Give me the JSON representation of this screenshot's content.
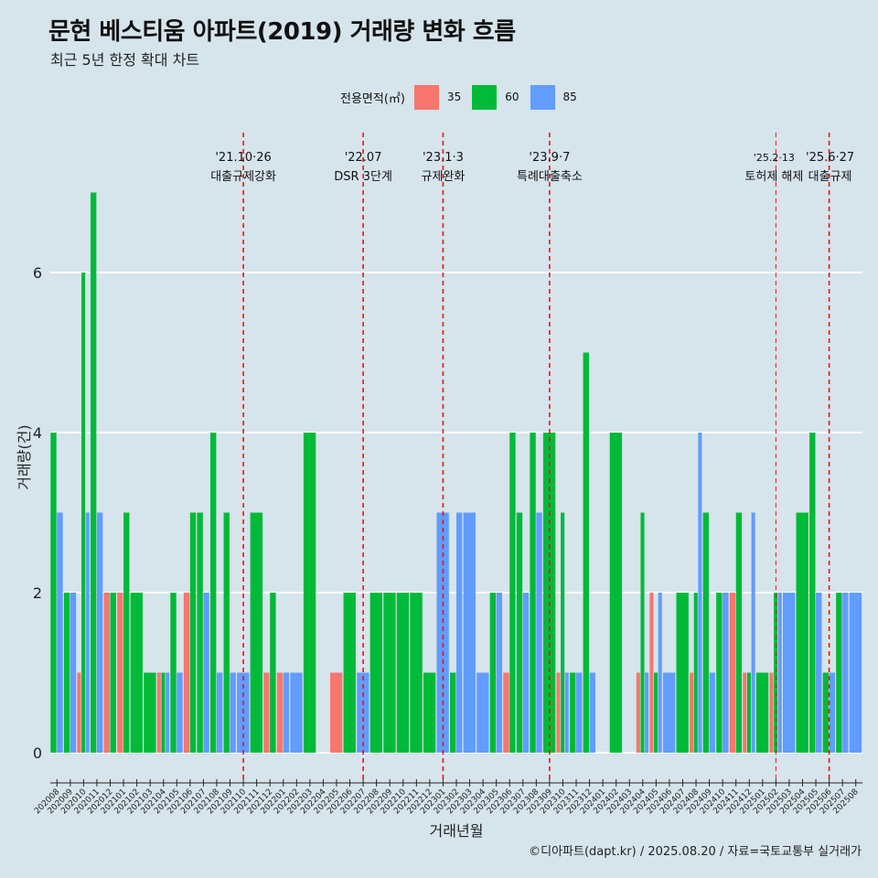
{
  "title": "문현 베스티움 아파트(2019) 거래량 변화 흐름",
  "subtitle": "최근 5년 한정 확대 차트",
  "caption": "©디아파트(dapt.kr) / 2025.08.20 / 자료=국토교통부 실거래가",
  "legend": {
    "title": "전용면적(㎡)",
    "items": [
      {
        "label": "35",
        "color": "#f8766d"
      },
      {
        "label": "60",
        "color": "#00ba38"
      },
      {
        "label": "85",
        "color": "#619cff"
      }
    ]
  },
  "chart_data": {
    "type": "bar",
    "xlabel": "거래년월",
    "ylabel": "거래량(건)",
    "ylim": [
      0,
      7
    ],
    "yticks": [
      0,
      2,
      4,
      6
    ],
    "grid": "horizontal",
    "legend_position": "top",
    "categories": [
      "202008",
      "202009",
      "202010",
      "202011",
      "202012",
      "202101",
      "202102",
      "202103",
      "202104",
      "202105",
      "202106",
      "202107",
      "202108",
      "202109",
      "202110",
      "202111",
      "202112",
      "202201",
      "202202",
      "202203",
      "202204",
      "202205",
      "202206",
      "202207",
      "202208",
      "202209",
      "202210",
      "202211",
      "202212",
      "202301",
      "202302",
      "202303",
      "202304",
      "202305",
      "202306",
      "202307",
      "202308",
      "202309",
      "202310",
      "202311",
      "202312",
      "202401",
      "202402",
      "202403",
      "202404",
      "202405",
      "202406",
      "202407",
      "202408",
      "202409",
      "202410",
      "202411",
      "202412",
      "202501",
      "202502",
      "202503",
      "202504",
      "202505",
      "202506",
      "202507",
      "202508"
    ],
    "series": [
      {
        "name": "35",
        "values": [
          0,
          0,
          1,
          0,
          2,
          2,
          0,
          0,
          1,
          0,
          2,
          0,
          0,
          0,
          0,
          0,
          1,
          1,
          0,
          0,
          0,
          1,
          0,
          0,
          0,
          0,
          0,
          0,
          0,
          0,
          0,
          0,
          0,
          0,
          1,
          0,
          0,
          0,
          1,
          0,
          0,
          0,
          0,
          0,
          1,
          2,
          0,
          0,
          1,
          0,
          0,
          2,
          1,
          0,
          1,
          0,
          0,
          0,
          0,
          0,
          0
        ]
      },
      {
        "name": "60",
        "values": [
          4,
          2,
          6,
          7,
          2,
          3,
          2,
          1,
          1,
          2,
          3,
          3,
          4,
          3,
          0,
          3,
          2,
          0,
          0,
          4,
          0,
          0,
          2,
          0,
          2,
          2,
          2,
          2,
          1,
          0,
          1,
          0,
          0,
          2,
          4,
          3,
          4,
          4,
          3,
          1,
          5,
          0,
          4,
          0,
          3,
          1,
          0,
          2,
          2,
          3,
          2,
          3,
          1,
          1,
          2,
          0,
          3,
          4,
          1,
          2,
          0
        ]
      },
      {
        "name": "85",
        "values": [
          3,
          2,
          3,
          3,
          0,
          0,
          0,
          0,
          1,
          1,
          0,
          2,
          1,
          1,
          1,
          0,
          0,
          1,
          1,
          0,
          0,
          0,
          0,
          1,
          0,
          0,
          0,
          0,
          0,
          3,
          3,
          3,
          1,
          2,
          0,
          2,
          3,
          0,
          1,
          1,
          1,
          0,
          0,
          0,
          1,
          2,
          1,
          0,
          4,
          1,
          2,
          0,
          3,
          0,
          2,
          2,
          0,
          2,
          1,
          2,
          2
        ]
      }
    ],
    "annotations": [
      {
        "date": "'21.10·26",
        "label": "대출규제강화",
        "at": "202110"
      },
      {
        "date": "'22.07",
        "label": "DSR 3단계",
        "at": "202207"
      },
      {
        "date": "'23.1·3",
        "label": "규제완화",
        "at": "202301"
      },
      {
        "date": "'23.9·7",
        "label": "특례대출축소",
        "at": "202309"
      },
      {
        "date": "'25.2·13",
        "label": "토허제 해제",
        "at": "202502"
      },
      {
        "date": "'25.6·27",
        "label": "대출규제",
        "at": "202506"
      }
    ]
  }
}
